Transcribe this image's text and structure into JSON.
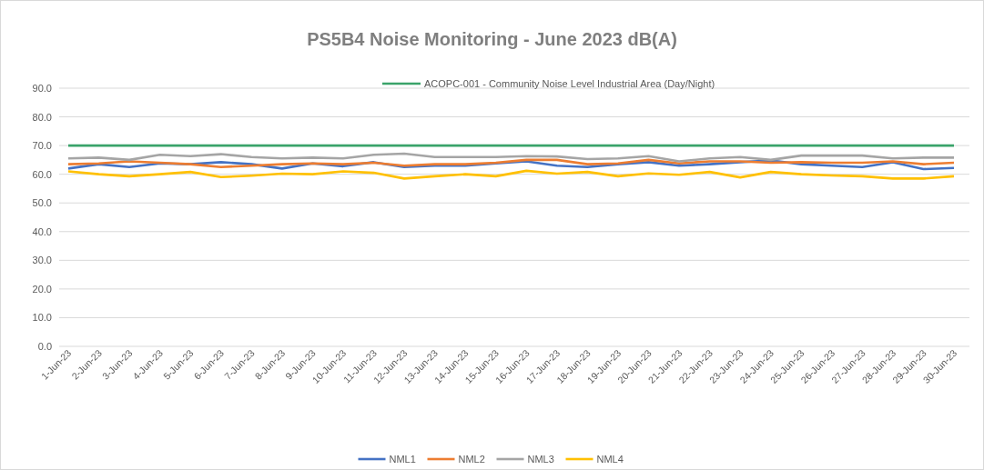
{
  "chart_data": {
    "type": "line",
    "title": "PS5B4 Noise Monitoring - June 2023 dB(A)",
    "categories": [
      "1-Jun-23",
      "2-Jun-23",
      "3-Jun-23",
      "4-Jun-23",
      "5-Jun-23",
      "6-Jun-23",
      "7-Jun-23",
      "8-Jun-23",
      "9-Jun-23",
      "10-Jun-23",
      "11-Jun-23",
      "12-Jun-23",
      "13-Jun-23",
      "14-Jun-23",
      "15-Jun-23",
      "16-Jun-23",
      "17-Jun-23",
      "18-Jun-23",
      "19-Jun-23",
      "20-Jun-23",
      "21-Jun-23",
      "22-Jun-23",
      "23-Jun-23",
      "24-Jun-23",
      "25-Jun-23",
      "26-Jun-23",
      "27-Jun-23",
      "28-Jun-23",
      "29-Jun-23",
      "30-Jun-23"
    ],
    "series": [
      {
        "name": "ACOPC-001 - Community Noise Level Industrial Area (Day/Night)",
        "color": "#3aa36a",
        "values": [
          70,
          70,
          70,
          70,
          70,
          70,
          70,
          70,
          70,
          70,
          70,
          70,
          70,
          70,
          70,
          70,
          70,
          70,
          70,
          70,
          70,
          70,
          70,
          70,
          70,
          70,
          70,
          70,
          70,
          70
        ]
      },
      {
        "name": "NML1",
        "color": "#4472c4",
        "values": [
          62,
          63.5,
          62.5,
          63.8,
          63.5,
          64.2,
          63.5,
          62,
          63.8,
          62.8,
          64.2,
          62.5,
          63,
          63,
          63.8,
          64.5,
          63,
          62.5,
          63.5,
          64.2,
          63,
          63.5,
          64.2,
          64.8,
          63.5,
          63,
          62.5,
          64.2,
          61.8,
          62.2
        ]
      },
      {
        "name": "NML2",
        "color": "#ed7d31",
        "values": [
          63.5,
          63.8,
          64.5,
          64,
          63.5,
          62.5,
          63,
          63.5,
          63.8,
          63.5,
          64,
          63,
          63.5,
          63.5,
          64,
          65,
          65,
          63.5,
          63.8,
          65,
          63.8,
          64.5,
          64.5,
          64,
          64.2,
          64,
          64,
          64.5,
          63.5,
          64
        ]
      },
      {
        "name": "NML3",
        "color": "#a5a5a5",
        "values": [
          65.5,
          65.8,
          65,
          66.8,
          66.3,
          67,
          66,
          65.5,
          65.8,
          65.5,
          66.8,
          67.2,
          66,
          66,
          66,
          66.3,
          66.2,
          65.3,
          65.5,
          66.3,
          64.5,
          65.5,
          66,
          65,
          66.5,
          66.5,
          66.5,
          65.5,
          65.8,
          65.8
        ]
      },
      {
        "name": "NML4",
        "color": "#ffc000",
        "values": [
          61,
          60,
          59.3,
          60,
          60.8,
          59,
          59.5,
          60.2,
          60,
          61,
          60.5,
          58.5,
          59.3,
          60,
          59.3,
          61.2,
          60.2,
          60.8,
          59.3,
          60.3,
          59.8,
          60.8,
          58.9,
          60.8,
          60,
          59.6,
          59.3,
          58.5,
          58.5,
          59.3
        ]
      }
    ],
    "ylim": [
      0,
      90
    ],
    "yticks": [
      {
        "value": 0,
        "label": "0.0"
      },
      {
        "value": 10,
        "label": "10.0"
      },
      {
        "value": 20,
        "label": "20.0"
      },
      {
        "value": 30,
        "label": "30.0"
      },
      {
        "value": 40,
        "label": "40.0"
      },
      {
        "value": 50,
        "label": "50.0"
      },
      {
        "value": 60,
        "label": "60.0"
      },
      {
        "value": 70,
        "label": "70.0"
      },
      {
        "value": 80,
        "label": "80.0"
      },
      {
        "value": 90,
        "label": "90.0"
      }
    ],
    "grid": "y",
    "legend": "bottom",
    "marker": "none",
    "line_style": "solid"
  }
}
